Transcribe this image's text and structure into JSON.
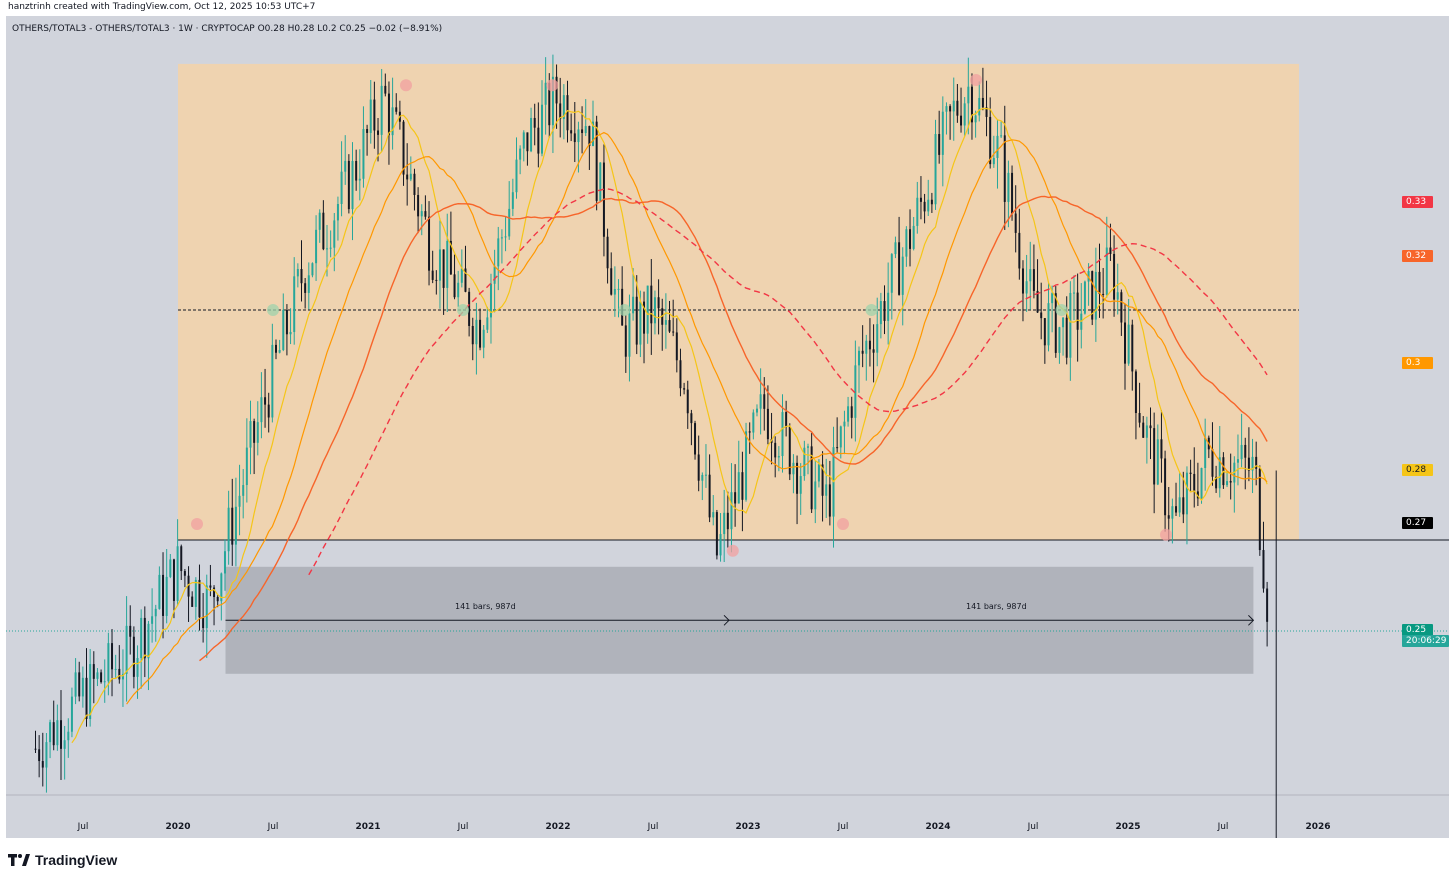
{
  "header": {
    "credit": "hanztrinh created with TradingView.com, Oct 12, 2025 10:53 UTC+7"
  },
  "chart": {
    "symbol_line": "OTHERS/TOTAL3 - OTHERS/TOTAL3 · 1W · CRYPTOCAP  O0.28  H0.28  L0.2  C0.25  −0.02 (−8.91%)",
    "measure_left": "141 bars, 987d",
    "measure_right": "141 bars, 987d",
    "current_price_time": "20:06:29"
  },
  "price_tags": [
    {
      "label": "0.33",
      "color": "#f23645",
      "light": true
    },
    {
      "label": "0.32",
      "color": "#f7652a",
      "light": true
    },
    {
      "label": "0.3",
      "color": "#ff9800",
      "light": true
    },
    {
      "label": "0.28",
      "color": "#f5c518",
      "light": false
    },
    {
      "label": "0.27",
      "color": "#000000",
      "light": true
    },
    {
      "label": "0.25",
      "color": "#089981",
      "light": true
    }
  ],
  "time_axis": [
    {
      "label": "Jul",
      "year": false
    },
    {
      "label": "2020",
      "year": true
    },
    {
      "label": "Jul",
      "year": false
    },
    {
      "label": "2021",
      "year": true
    },
    {
      "label": "Jul",
      "year": false
    },
    {
      "label": "2022",
      "year": true
    },
    {
      "label": "Jul",
      "year": false
    },
    {
      "label": "2023",
      "year": true
    },
    {
      "label": "Jul",
      "year": false
    },
    {
      "label": "2024",
      "year": true
    },
    {
      "label": "Jul",
      "year": false
    },
    {
      "label": "2025",
      "year": true
    },
    {
      "label": "Jul",
      "year": false
    },
    {
      "label": "2026",
      "year": true
    }
  ],
  "footer": {
    "brand": "TradingView"
  },
  "colors": {
    "background": "#d1d4dc",
    "range_box": "#f5d2a8",
    "measure_box": "#9598a1",
    "up_candle": "#26a69a",
    "down_candle": "#131722",
    "ma_fast": "#f5c518",
    "ma_mid": "#ff9800",
    "ma_slow": "#f7652a",
    "ma_200": "#f23645"
  },
  "chart_data": {
    "type": "candlestick",
    "timeframe": "1W",
    "symbol": "OTHERS/TOTAL3",
    "ohlc_last": {
      "open": 0.28,
      "high": 0.28,
      "low": 0.2,
      "close": 0.25,
      "change": -0.02,
      "change_pct": -8.91
    },
    "range_high": 0.356,
    "range_mid": 0.31,
    "range_low": 0.267,
    "support_line": 0.267,
    "measure_zone": [
      0.242,
      0.262
    ],
    "measure_bars": 141,
    "measure_days": 987,
    "moving_averages": [
      {
        "color": "fast",
        "last": 0.28
      },
      {
        "color": "mid",
        "last": 0.3
      },
      {
        "color": "slow",
        "last": 0.32
      },
      {
        "color": "slow_dashed",
        "last": 0.33
      }
    ],
    "closes": [
      {
        "date": "2019-04",
        "close": 0.228
      },
      {
        "date": "2019-07",
        "close": 0.238
      },
      {
        "date": "2019-10",
        "close": 0.246
      },
      {
        "date": "2020-01",
        "close": 0.262
      },
      {
        "date": "2020-03",
        "close": 0.255
      },
      {
        "date": "2020-06",
        "close": 0.288
      },
      {
        "date": "2020-09",
        "close": 0.318
      },
      {
        "date": "2020-12",
        "close": 0.335
      },
      {
        "date": "2021-02",
        "close": 0.35
      },
      {
        "date": "2021-05",
        "close": 0.322
      },
      {
        "date": "2021-08",
        "close": 0.307
      },
      {
        "date": "2021-11",
        "close": 0.342
      },
      {
        "date": "2022-01",
        "close": 0.35
      },
      {
        "date": "2022-03",
        "close": 0.345
      },
      {
        "date": "2022-05",
        "close": 0.305
      },
      {
        "date": "2022-07",
        "close": 0.31
      },
      {
        "date": "2022-09",
        "close": 0.298
      },
      {
        "date": "2022-11",
        "close": 0.264
      },
      {
        "date": "2023-02",
        "close": 0.292
      },
      {
        "date": "2023-04",
        "close": 0.282
      },
      {
        "date": "2023-06",
        "close": 0.274
      },
      {
        "date": "2023-08",
        "close": 0.3
      },
      {
        "date": "2023-11",
        "close": 0.322
      },
      {
        "date": "2024-02",
        "close": 0.347
      },
      {
        "date": "2024-03",
        "close": 0.352
      },
      {
        "date": "2024-05",
        "close": 0.338
      },
      {
        "date": "2024-07",
        "close": 0.31
      },
      {
        "date": "2024-09",
        "close": 0.306
      },
      {
        "date": "2024-12",
        "close": 0.318
      },
      {
        "date": "2025-02",
        "close": 0.288
      },
      {
        "date": "2025-04",
        "close": 0.27
      },
      {
        "date": "2025-06",
        "close": 0.283
      },
      {
        "date": "2025-09",
        "close": 0.28
      },
      {
        "date": "2025-10",
        "close": 0.25
      }
    ]
  }
}
